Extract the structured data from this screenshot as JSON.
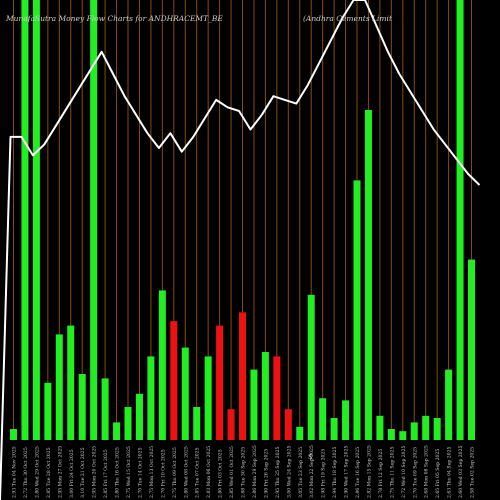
{
  "chart_data": {
    "type": "bar",
    "title_left": "MunafaSutra  Money Flow  Charts for ANDHRACEMT_BE",
    "title_right": "(Andhra Cements Limit",
    "xlabel": "",
    "ylabel": "",
    "grid": true,
    "colors": {
      "background": "#000000",
      "up": "#22ee22",
      "down": "#ee1111",
      "line": "#ffffff",
      "grid": "#8a4a0a",
      "text": "#cccccc"
    },
    "ylim": [
      0,
      100
    ],
    "categories": [
      "2.93 Tue 04 Nov 2025",
      "2.72 Thu 30 Oct 2025",
      "2.80 Wed 29 Oct 2025",
      "2.85 Tue 28 Oct 2025",
      "2.95 Mon 27 Oct 2025",
      "3.00 Fri 24 Oct 2025",
      "3.10 Tue 21 Oct 2025",
      "2.95 Mon 20 Oct 2025",
      "2.85 Fri 17 Oct 2025",
      "2.80 Thu 16 Oct 2025",
      "2.75 Wed 15 Oct 2025",
      "2.70 Tue 14 Oct 2025",
      "2.75 Mon 13 Oct 2025",
      "2.70 Fri 10 Oct 2025",
      "2.75 Thu 09 Oct 2025",
      "2.80 Wed 08 Oct 2025",
      "2.85 Tue 07 Oct 2025",
      "2.83 Mon 06 Oct 2025",
      "2.80 Fri 03 Oct 2025",
      "2.85 Wed 01 Oct 2025",
      "2.88 Tue 30 Sep 2025",
      "2.86 Mon 29 Sep 2025",
      "2.90 Fri 26 Sep 2025",
      "2.95 Thu 25 Sep 2025",
      "3.00 Wed 24 Sep 2025",
      "3.05 Tue 23 Sep 2025",
      "3.02 Mon 22 Sep 2025",
      "2.98 Fri 19 Sep 2025",
      "2.94 Thu 18 Sep 2025",
      "2.90 Wed 17 Sep 2025",
      "2.86 Tue 16 Sep 2025",
      "2.82 Mon 15 Sep 2025",
      "2.78 Fri 12 Sep 2025",
      "2.75 Thu 11 Sep 2025",
      "2.72 Wed 10 Sep 2025",
      "2.70 Tue 09 Sep 2025",
      "2.68 Mon 08 Sep 2025",
      "2.65 Fri 05 Sep 2025",
      "2.63 Thu 04 Sep 2025",
      "2.60 Wed 03 Sep 2025",
      "2.58 Tue 02 Sep 2025"
    ],
    "series": [
      {
        "values": [
          2.5,
          100,
          100,
          13,
          24,
          26,
          15,
          100,
          14,
          4,
          7.5,
          10.5,
          19,
          34,
          27,
          21,
          7.5,
          19,
          26,
          7,
          29,
          16,
          20,
          19,
          7,
          3,
          33,
          9.5,
          5,
          9,
          59,
          75,
          5.5,
          2.5,
          2,
          4,
          5.5,
          5,
          16,
          100,
          41
        ],
        "colors": [
          "up",
          "up",
          "up",
          "up",
          "up",
          "up",
          "up",
          "up",
          "up",
          "up",
          "up",
          "up",
          "up",
          "up",
          "down",
          "up",
          "up",
          "up",
          "down",
          "down",
          "down",
          "up",
          "up",
          "down",
          "down",
          "up",
          "up",
          "up",
          "up",
          "up",
          "up",
          "up",
          "up",
          "up",
          "up",
          "up",
          "up",
          "up",
          "up",
          "up",
          "up"
        ]
      },
      {
        "type": "line",
        "values": [
          63,
          58,
          61,
          66,
          71,
          76,
          81,
          86,
          80,
          74,
          69,
          64,
          60,
          64,
          59,
          63,
          68,
          73,
          71,
          70,
          65,
          69,
          74,
          73,
          72,
          77,
          83,
          89,
          95,
          100,
          100,
          93,
          86,
          80,
          75,
          70,
          65,
          61,
          57,
          53,
          50
        ]
      }
    ]
  },
  "footer": {
    "symbol": "$"
  }
}
